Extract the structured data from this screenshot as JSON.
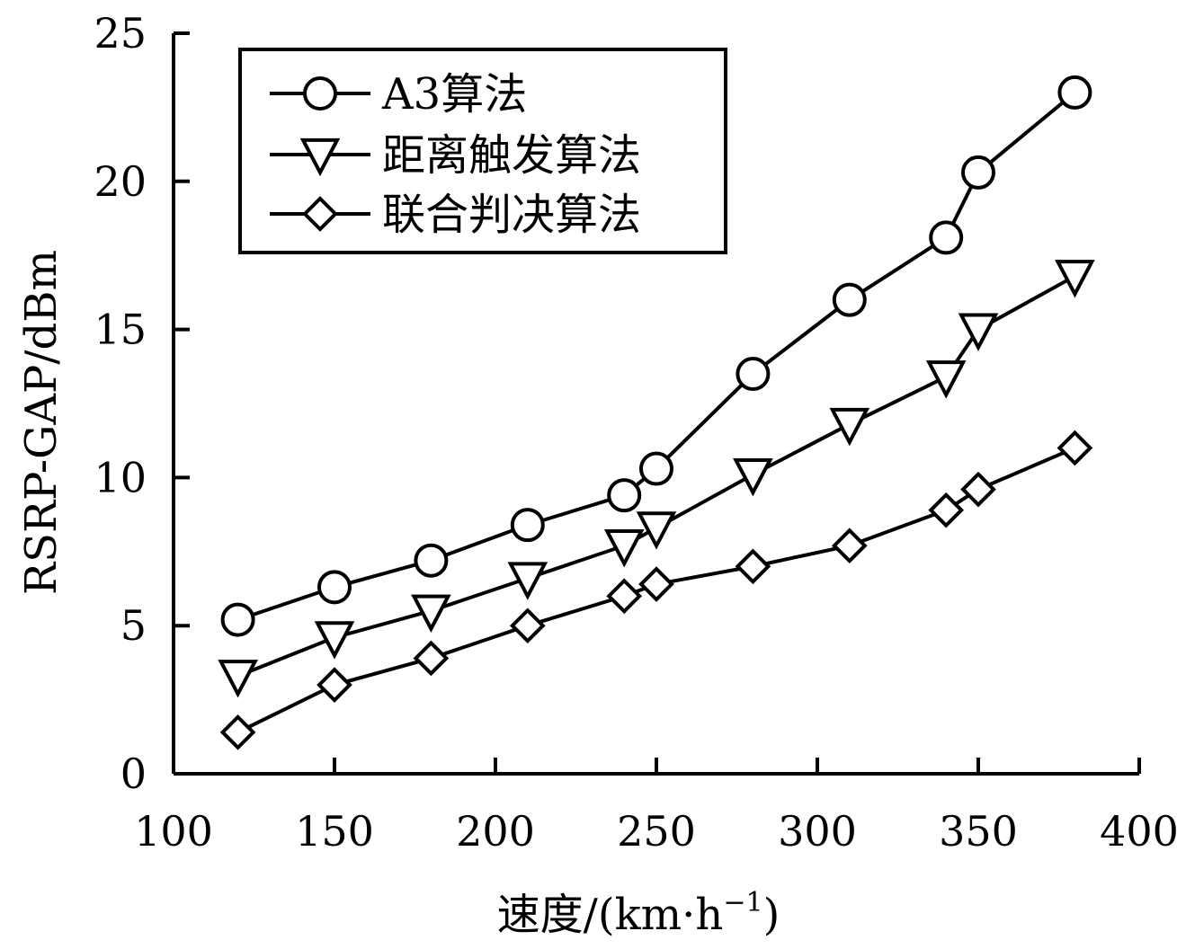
{
  "chart_data": {
    "type": "line",
    "xlabel_main": "速度/(km·h",
    "xlabel_sup": "−1",
    "xlabel_end": ")",
    "ylabel": "RSRP-GAP/dBm",
    "xlim": [
      100,
      400
    ],
    "ylim": [
      0,
      25
    ],
    "xticks": [
      100,
      150,
      200,
      250,
      300,
      350,
      400
    ],
    "yticks": [
      0,
      5,
      10,
      15,
      20,
      25
    ],
    "grid": false,
    "legend_position": "top-left",
    "x": [
      120,
      150,
      180,
      210,
      240,
      250,
      280,
      310,
      340,
      350,
      380
    ],
    "series": [
      {
        "name": "A3算法",
        "marker": "circle",
        "values": [
          5.2,
          6.3,
          7.2,
          8.4,
          9.4,
          10.3,
          13.5,
          16.0,
          18.1,
          20.3,
          23.0
        ]
      },
      {
        "name": "距离触发算法",
        "marker": "triangle-down",
        "values": [
          3.3,
          4.6,
          5.5,
          6.6,
          7.7,
          8.3,
          10.1,
          11.8,
          13.4,
          15.0,
          16.8
        ]
      },
      {
        "name": "联合判决算法",
        "marker": "diamond",
        "values": [
          1.4,
          3.0,
          3.9,
          5.0,
          6.0,
          6.4,
          7.0,
          7.7,
          8.9,
          9.6,
          11.0
        ]
      }
    ],
    "colors": {
      "line": "#000000",
      "marker_fill": "#ffffff",
      "background": "#ffffff"
    }
  }
}
